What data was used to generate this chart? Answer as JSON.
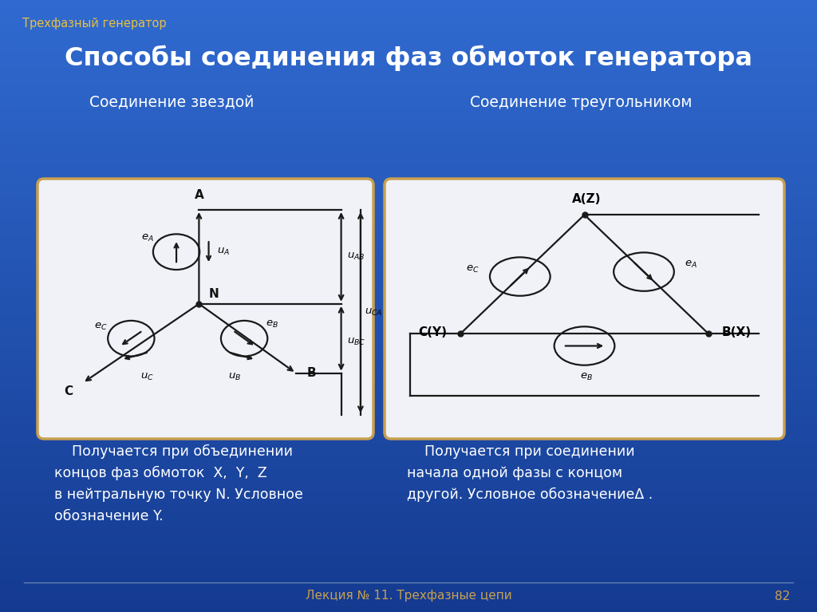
{
  "bg_color_top": "#1a3f8f",
  "bg_color_bottom": "#2b6cd4",
  "panel_face": "#f0f2f8",
  "panel_edge": "#c8a050",
  "panel_lw": 2.5,
  "title_text": "Способы соединения фаз обмоток генератора",
  "subtitle_text": "Трехфазный генератор",
  "left_heading": "Соединение звездой",
  "right_heading": "Соединение треугольником",
  "footer_text": "Лекция № 11. Трехфазные цепи",
  "footer_page": "82",
  "line_color": "#1a1a1a",
  "lw": 1.6,
  "title_color": "#ffffff",
  "subtitle_color": "#e8c040",
  "heading_color": "#ffffff",
  "footer_color": "#c8a050",
  "desc_color": "#ffffff"
}
